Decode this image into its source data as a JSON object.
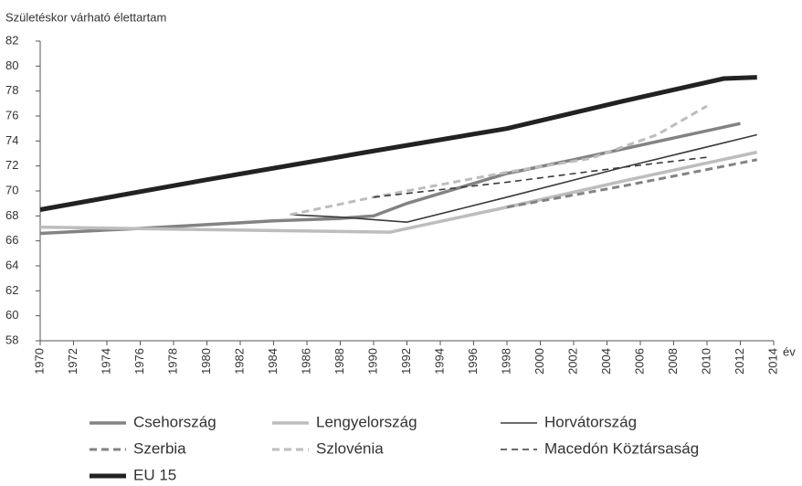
{
  "chart_data": {
    "type": "line",
    "ylabel": "Születéskor várható élettartam",
    "xlabel": "év",
    "xlim": [
      1970,
      2014
    ],
    "xticks": [
      1970,
      1972,
      1974,
      1976,
      1978,
      1980,
      1982,
      1984,
      1986,
      1988,
      1990,
      1992,
      1994,
      1996,
      1998,
      2000,
      2002,
      2004,
      2006,
      2008,
      2010,
      2012,
      2014
    ],
    "ylim": [
      58,
      82
    ],
    "yticks": [
      58,
      60,
      62,
      64,
      66,
      68,
      70,
      72,
      74,
      76,
      78,
      80,
      82
    ],
    "series": [
      {
        "name": "Csehország",
        "color": "#838383",
        "width": 3.5,
        "dashed": false,
        "x": [
          1970,
          1976,
          1984,
          1988,
          1990,
          1992,
          1996,
          1998,
          2002,
          2012
        ],
        "values": [
          66.6,
          67.0,
          67.6,
          67.8,
          68.0,
          69.0,
          70.6,
          71.4,
          72.5,
          75.4
        ]
      },
      {
        "name": "Lengyelország",
        "color": "#bdbdbd",
        "width": 3.5,
        "dashed": false,
        "x": [
          1970,
          1980,
          1991,
          1998,
          2005,
          2013
        ],
        "values": [
          67.1,
          66.9,
          66.7,
          68.7,
          70.8,
          73.1
        ]
      },
      {
        "name": "Horvátország",
        "color": "#3a3a3a",
        "width": 1.6,
        "dashed": false,
        "x": [
          1985,
          1988,
          1992,
          1998,
          2005,
          2013
        ],
        "values": [
          68.1,
          67.9,
          67.5,
          69.5,
          71.9,
          74.5
        ]
      },
      {
        "name": "Szerbia",
        "color": "#838383",
        "width": 3,
        "dashed": true,
        "x": [
          1998,
          2005,
          2013
        ],
        "values": [
          68.7,
          70.4,
          72.5
        ]
      },
      {
        "name": "Szlovénia",
        "color": "#bdbdbd",
        "width": 3,
        "dashed": true,
        "x": [
          1985,
          1990,
          1998,
          2003,
          2007,
          2010
        ],
        "values": [
          68.1,
          69.5,
          71.5,
          72.6,
          74.5,
          76.8
        ]
      },
      {
        "name": "Macedón Köztársaság",
        "color": "#3a3a3a",
        "width": 1.6,
        "dashed": true,
        "x": [
          1990,
          1998,
          2005,
          2010
        ],
        "values": [
          69.5,
          70.7,
          71.9,
          72.7
        ]
      },
      {
        "name": "EU 15",
        "color": "#222222",
        "width": 5,
        "dashed": false,
        "x": [
          1970,
          1980,
          1990,
          1998,
          2005,
          2011,
          2013
        ],
        "values": [
          68.5,
          70.9,
          73.2,
          75.0,
          77.2,
          79.0,
          79.1
        ]
      }
    ]
  }
}
